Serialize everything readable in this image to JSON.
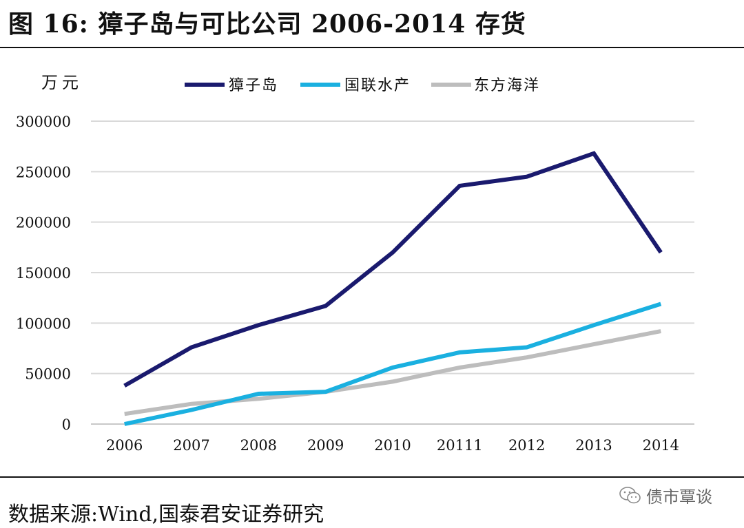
{
  "title": "图 16: 獐子岛与可比公司 2006-2014 存货",
  "unit": "万元",
  "source": "数据来源:Wind,国泰君安证券研究",
  "watermark": {
    "text": "债市覃谈",
    "icon": "wechat-icon"
  },
  "colors": {
    "zhangzidao": "#1a1a6e",
    "guolian": "#1ab0e0",
    "dongfang": "#bdbdbd",
    "grid": "#d9d9d9"
  },
  "chart_data": {
    "type": "line",
    "categories": [
      "2006",
      "2007",
      "2008",
      "2009",
      "2010",
      "20111",
      "2012",
      "2013",
      "2014"
    ],
    "ylim": [
      0,
      300000
    ],
    "yticks": [
      0,
      50000,
      100000,
      150000,
      200000,
      250000,
      300000
    ],
    "ylabel": "万元",
    "grid": true,
    "legend_position": "top",
    "series": [
      {
        "name": "獐子岛",
        "color": "#1a1a6e",
        "values": [
          38000,
          76000,
          98000,
          117000,
          170000,
          236000,
          245000,
          268000,
          170000
        ]
      },
      {
        "name": "国联水产",
        "color": "#1ab0e0",
        "values": [
          0,
          14000,
          30000,
          32000,
          56000,
          71000,
          76000,
          98000,
          119000
        ]
      },
      {
        "name": "东方海洋",
        "color": "#bdbdbd",
        "values": [
          10000,
          20000,
          25000,
          32000,
          42000,
          56000,
          66000,
          79000,
          92000
        ]
      }
    ]
  }
}
